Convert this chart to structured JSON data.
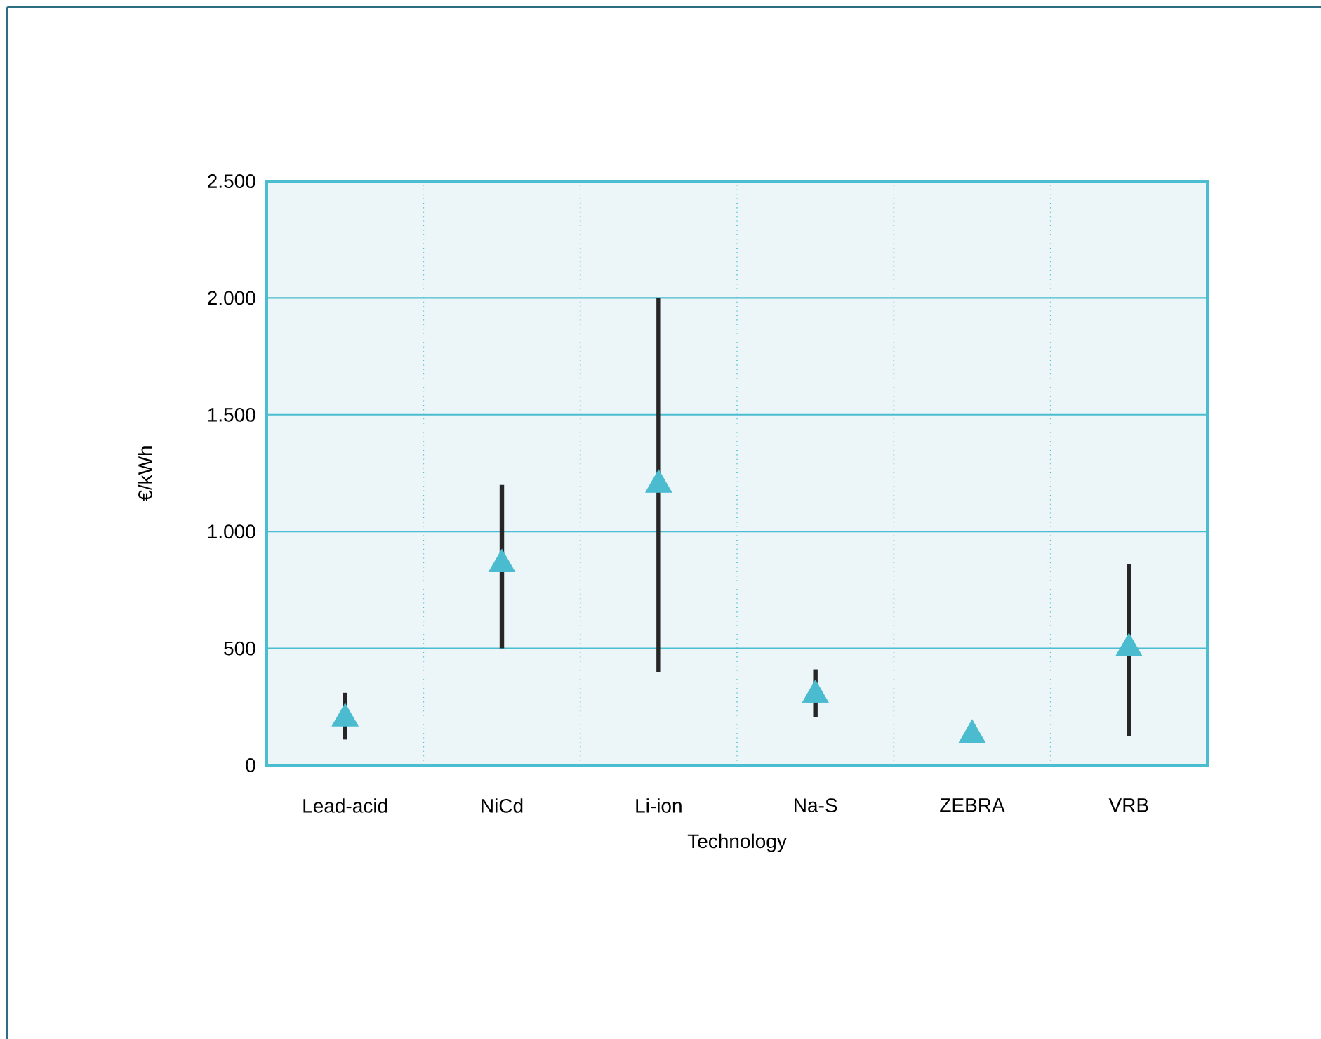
{
  "chart_data": {
    "type": "scatter",
    "categories": [
      "Lead-acid",
      "NiCd",
      "Li-ion",
      "Na-S",
      "ZEBRA",
      "VRB"
    ],
    "xlabel": "Technology",
    "ylabel": "€/kWh",
    "values": [
      200,
      860,
      1200,
      300,
      130,
      500
    ],
    "errors": [
      [
        110,
        310
      ],
      [
        500,
        1200
      ],
      [
        400,
        2000
      ],
      [
        205,
        410
      ],
      null,
      [
        125,
        860
      ]
    ],
    "color": "#4bbccf",
    "marker": "triangle",
    "ylim": [
      0,
      2500
    ],
    "yticks": [
      0,
      {
        "value": 500,
        "label": "500"
      },
      {
        "value": 1000,
        "label": "1.000"
      },
      {
        "value": 1500,
        "label": "1.500"
      },
      {
        "value": 2000,
        "label": "2.000"
      },
      {
        "value": 2500,
        "label": "2.500"
      }
    ],
    "grid": true
  }
}
